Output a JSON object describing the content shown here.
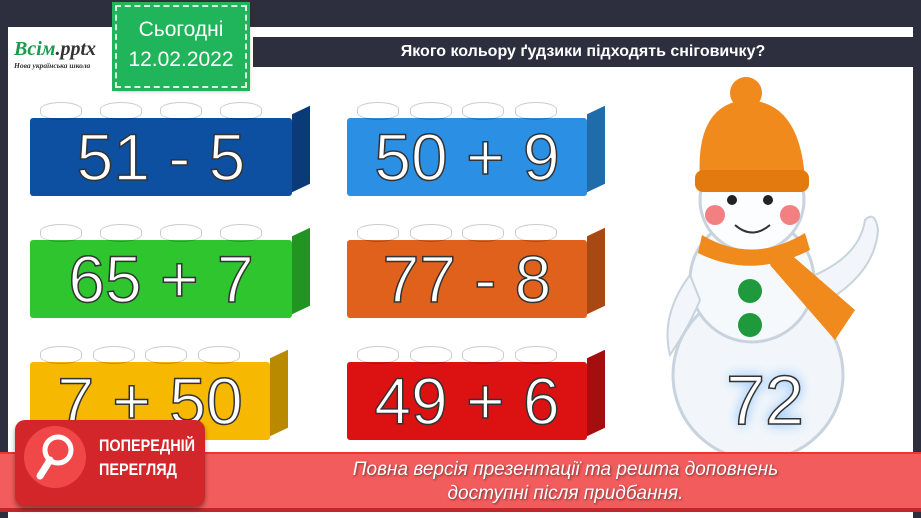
{
  "logo": {
    "brand": "Всім",
    "brand_suffix": ".pptx",
    "tagline": "Нова українська школа"
  },
  "date_badge": {
    "label": "Сьогодні",
    "date": "12.02.2022"
  },
  "header": {
    "title": "Якого кольору ґудзики підходять сніговичку?"
  },
  "bricks": [
    {
      "expression": "51 - 5",
      "color": "#0d4fa0"
    },
    {
      "expression": "50 + 9",
      "color": "#2b8fe3"
    },
    {
      "expression": "65 + 7",
      "color": "#2ec52e"
    },
    {
      "expression": "77 - 8",
      "color": "#e0611b"
    },
    {
      "expression": "7 + 50",
      "color": "#f6b800"
    },
    {
      "expression": "49 + 6",
      "color": "#dc1212"
    }
  ],
  "snowman": {
    "number": "72",
    "button_color": "#1e9a3c",
    "hat_color": "#f08a1c"
  },
  "preview": {
    "badge_line1": "ПОПЕРЕДНІЙ",
    "badge_line2": "ПЕРЕГЛЯД",
    "message_line1": "Повна версія презентації та решта доповнень",
    "message_line2": "доступні після придбання."
  }
}
